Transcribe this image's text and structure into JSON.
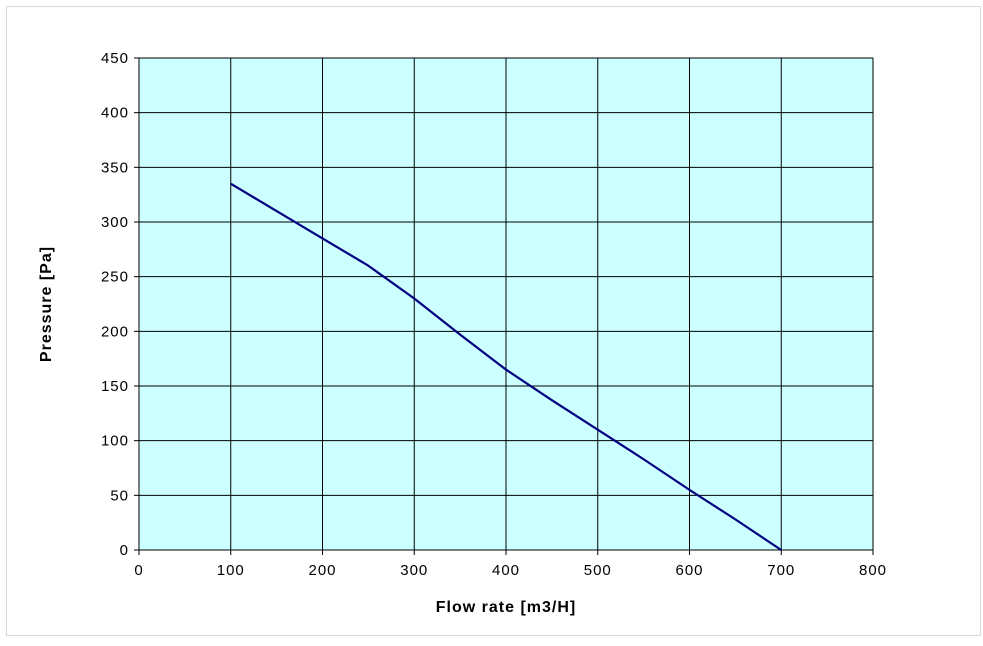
{
  "chart_data": {
    "type": "line",
    "title": "",
    "xlabel": "Flow rate [m3/H]",
    "ylabel": "Pressure [Pa]",
    "xlim": [
      0,
      800
    ],
    "ylim": [
      0,
      450
    ],
    "xticks": [
      0,
      100,
      200,
      300,
      400,
      500,
      600,
      700,
      800
    ],
    "yticks": [
      0,
      50,
      100,
      150,
      200,
      250,
      300,
      350,
      400,
      450
    ],
    "grid": true,
    "legend": "none",
    "colors": {
      "plot_background": "#ccffff",
      "line": "#000080",
      "grid": "#000000"
    },
    "series": [
      {
        "x": [
          100,
          150,
          200,
          250,
          300,
          350,
          400,
          450,
          500,
          550,
          600,
          650,
          700
        ],
        "y": [
          335,
          310,
          285,
          260,
          230,
          197,
          165,
          137,
          110,
          83,
          55,
          28,
          0
        ]
      }
    ]
  }
}
